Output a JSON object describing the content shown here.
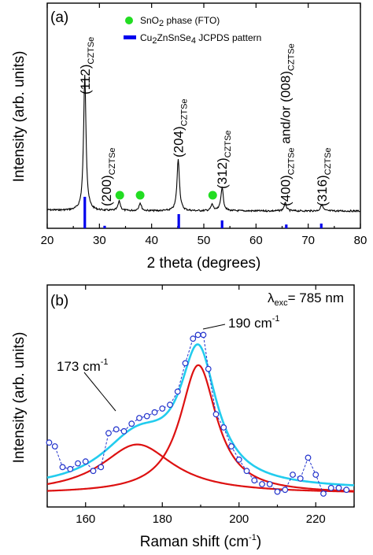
{
  "chart_data": [
    {
      "panel_label": "(a)",
      "type": "line",
      "xlabel": "2 theta (degrees)",
      "ylabel": "Intensity (arb. units)",
      "xlim": [
        20,
        80
      ],
      "x_ticks": [
        "20",
        "30",
        "40",
        "50",
        "60",
        "70",
        "80"
      ],
      "legend": {
        "placement": "top-center",
        "entries": [
          {
            "name": "SnO",
            "sub": "2",
            "rest": " phase (FTO)",
            "marker": "circle",
            "color": "#22dd22"
          },
          {
            "name": "Cu",
            "sub": "2",
            "rest": "ZnSnSe",
            "sub2": "4",
            "rest2": " JCPDS pattern",
            "marker": "bar",
            "color": "#0000ee"
          }
        ]
      },
      "xrd_peaks": [
        {
          "x": 27.2,
          "h": 0.86
        },
        {
          "x": 33.8,
          "h": 0.06
        },
        {
          "x": 37.8,
          "h": 0.05
        },
        {
          "x": 45.1,
          "h": 0.33
        },
        {
          "x": 51.6,
          "h": 0.04
        },
        {
          "x": 53.5,
          "h": 0.15
        },
        {
          "x": 65.6,
          "h": 0.05
        },
        {
          "x": 72.6,
          "h": 0.04
        }
      ],
      "sno2_markers": [
        33.9,
        37.8,
        51.7
      ],
      "jcpds_lines": [
        {
          "x": 27.2,
          "h": 1.0
        },
        {
          "x": 31.0,
          "h": 0.08
        },
        {
          "x": 45.2,
          "h": 0.45
        },
        {
          "x": 53.5,
          "h": 0.25
        },
        {
          "x": 65.8,
          "h": 0.12
        },
        {
          "x": 72.5,
          "h": 0.15
        }
      ],
      "peak_labels": [
        {
          "hkl": "(112)",
          "sub": "CZTSe",
          "x": 27.2
        },
        {
          "hkl": "(200)",
          "sub": "CZTSe",
          "x": 31.3
        },
        {
          "hkl": "(204)",
          "sub": "CZTSe",
          "x": 45.1
        },
        {
          "hkl": "(312)",
          "sub": "CZTSe",
          "x": 53.5
        },
        {
          "hkl": "(400)",
          "sub": "CZTSe",
          "x": 65.6,
          "extra": "and/or (008)",
          "extra_sub": "CZTSe"
        },
        {
          "hkl": "(316)",
          "sub": "CZTSe",
          "x": 72.6
        }
      ]
    },
    {
      "panel_label": "(b)",
      "type": "line",
      "xlabel": "Raman shift (cm",
      "xlabel_sup": "-1",
      "xlabel_end": ")",
      "ylabel": "Intensity (arb. units)",
      "xlim": [
        150,
        230
      ],
      "x_ticks": [
        "160",
        "180",
        "200",
        "220"
      ],
      "lambda_label": {
        "symbol": "λ",
        "sub": "exc",
        "rest": "= 785 nm"
      },
      "annotations": [
        {
          "text": "173 cm",
          "sup": "-1"
        },
        {
          "text": "190 cm",
          "sup": "-1"
        }
      ],
      "fit_peaks": [
        {
          "center": 173.5,
          "width": 11.5,
          "amplitude": 0.26
        },
        {
          "center": 189.4,
          "width": 5.8,
          "amplitude": 0.68
        }
      ],
      "baseline": 0.0,
      "data_points": [
        {
          "x": 150.5,
          "y": 0.27
        },
        {
          "x": 152,
          "y": 0.25
        },
        {
          "x": 154,
          "y": 0.14
        },
        {
          "x": 156,
          "y": 0.13
        },
        {
          "x": 158,
          "y": 0.16
        },
        {
          "x": 160,
          "y": 0.17
        },
        {
          "x": 162,
          "y": 0.12
        },
        {
          "x": 164,
          "y": 0.14
        },
        {
          "x": 166,
          "y": 0.32
        },
        {
          "x": 168,
          "y": 0.34
        },
        {
          "x": 170,
          "y": 0.33
        },
        {
          "x": 172,
          "y": 0.37
        },
        {
          "x": 174,
          "y": 0.4
        },
        {
          "x": 176,
          "y": 0.41
        },
        {
          "x": 178,
          "y": 0.43
        },
        {
          "x": 180,
          "y": 0.45
        },
        {
          "x": 182,
          "y": 0.47
        },
        {
          "x": 184,
          "y": 0.54
        },
        {
          "x": 186,
          "y": 0.69
        },
        {
          "x": 188,
          "y": 0.82
        },
        {
          "x": 189.3,
          "y": 0.84
        },
        {
          "x": 190.7,
          "y": 0.84
        },
        {
          "x": 192,
          "y": 0.66
        },
        {
          "x": 194,
          "y": 0.42
        },
        {
          "x": 196,
          "y": 0.35
        },
        {
          "x": 198,
          "y": 0.25
        },
        {
          "x": 200,
          "y": 0.18
        },
        {
          "x": 202,
          "y": 0.12
        },
        {
          "x": 204,
          "y": 0.07
        },
        {
          "x": 206,
          "y": 0.05
        },
        {
          "x": 208,
          "y": 0.05
        },
        {
          "x": 210,
          "y": 0.01
        },
        {
          "x": 212,
          "y": 0.02
        },
        {
          "x": 214,
          "y": 0.1
        },
        {
          "x": 216,
          "y": 0.08
        },
        {
          "x": 218,
          "y": 0.19
        },
        {
          "x": 220,
          "y": 0.1
        },
        {
          "x": 222,
          "y": 0.0
        },
        {
          "x": 224,
          "y": 0.03
        },
        {
          "x": 226,
          "y": 0.03
        },
        {
          "x": 228,
          "y": 0.02
        }
      ],
      "colors": {
        "data": "#2233cc",
        "fit_total": "#22ccee",
        "fit_components": "#dd1111"
      }
    }
  ]
}
